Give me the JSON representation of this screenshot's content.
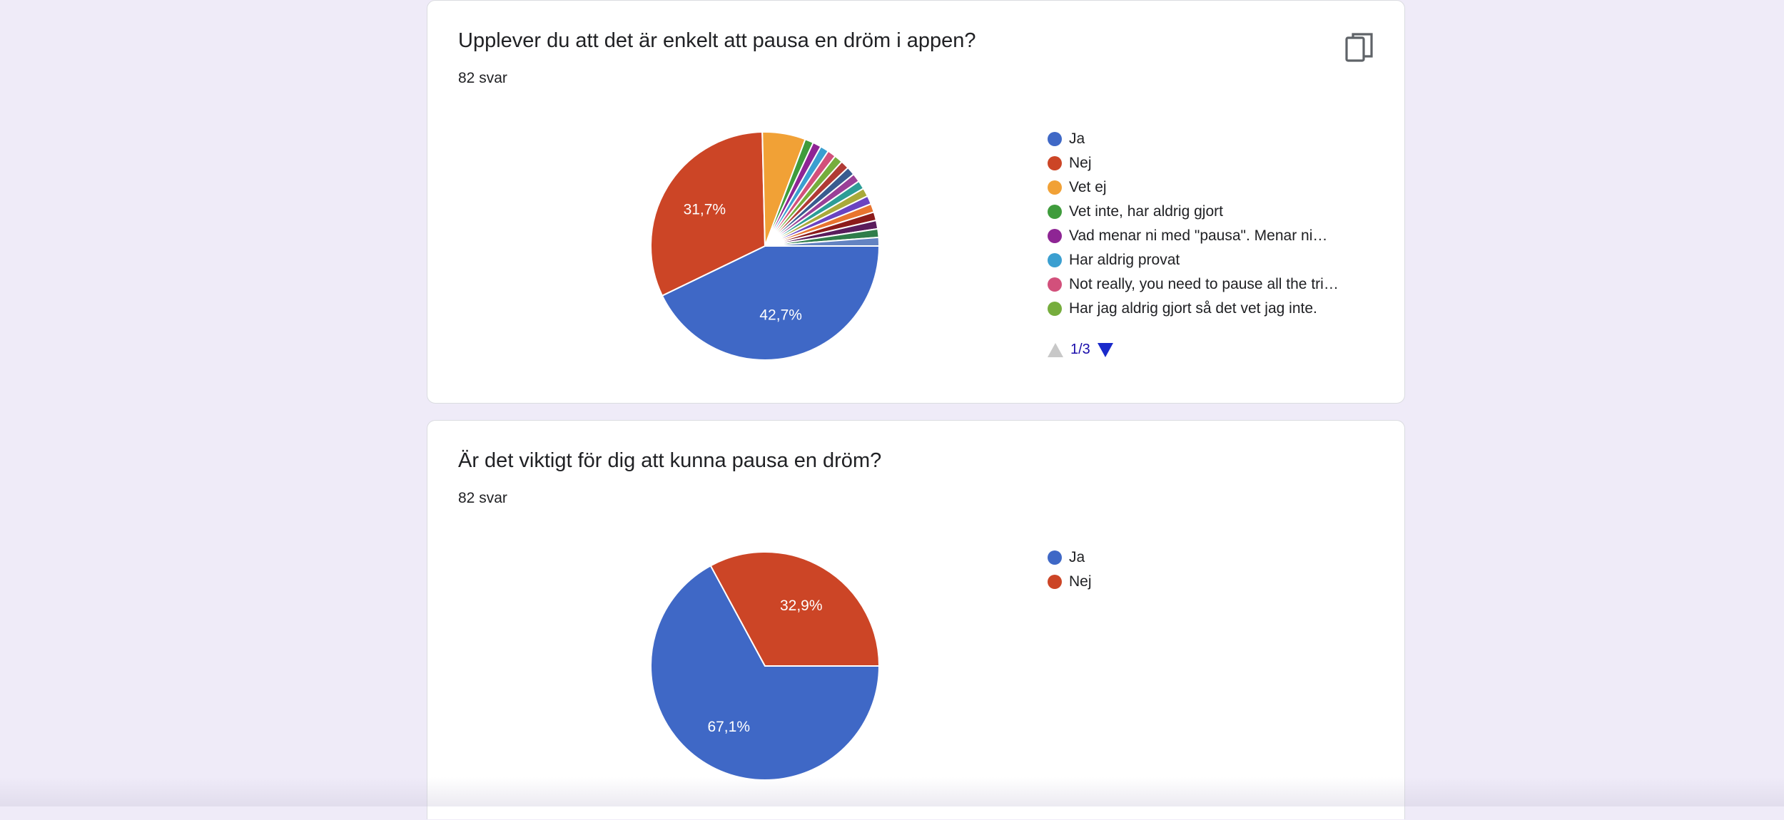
{
  "chart_data": [
    {
      "type": "pie",
      "title": "Upplever du att det är enkelt att pausa en dröm i appen?",
      "subtitle": "82 svar",
      "categories": [
        "Ja",
        "Nej",
        "Vet ej",
        "Vet inte, har aldrig gjort",
        "Vad menar ni med \"pausa\". Menar ni…",
        "Har aldrig provat",
        "Not really, you need to pause all the tri…",
        "Har jag aldrig gjort så det vet jag inte.",
        "",
        "",
        "",
        "",
        "",
        "",
        "",
        "",
        "",
        "",
        ""
      ],
      "values": [
        42.7,
        31.7,
        6.1,
        1.2,
        1.2,
        1.2,
        1.2,
        1.2,
        1.2,
        1.2,
        1.2,
        1.2,
        1.2,
        1.2,
        1.2,
        1.2,
        1.2,
        1.2,
        1.2
      ],
      "data_labels": [
        "42,7%",
        "31,7%",
        "",
        "",
        "",
        "",
        "",
        "",
        "",
        "",
        "",
        "",
        "",
        "",
        "",
        "",
        "",
        "",
        ""
      ],
      "colors": [
        "#3f68c6",
        "#cc4526",
        "#f1a136",
        "#3f9c3c",
        "#8e2594",
        "#3b9fd0",
        "#d2507b",
        "#76ad3d",
        "#b03b35",
        "#395c8f",
        "#9a4097",
        "#2d9d96",
        "#a9aa3a",
        "#6a43c1",
        "#e8742f",
        "#8c1b1b",
        "#5a1c5c",
        "#2f7d4a",
        "#6383c2"
      ],
      "legend_page": "1/3",
      "legend_position": "right"
    },
    {
      "type": "pie",
      "title": "Är det viktigt för dig att kunna pausa en dröm?",
      "subtitle": "82 svar",
      "categories": [
        "Ja",
        "Nej"
      ],
      "values": [
        67.1,
        32.9
      ],
      "data_labels": [
        "67,1%",
        "32,9%"
      ],
      "colors": [
        "#3f68c6",
        "#cc4526"
      ],
      "legend_position": "right"
    }
  ],
  "icons": {
    "copy": "copy-icon",
    "pager_prev": "triangle-up-icon",
    "pager_next": "triangle-down-icon"
  }
}
